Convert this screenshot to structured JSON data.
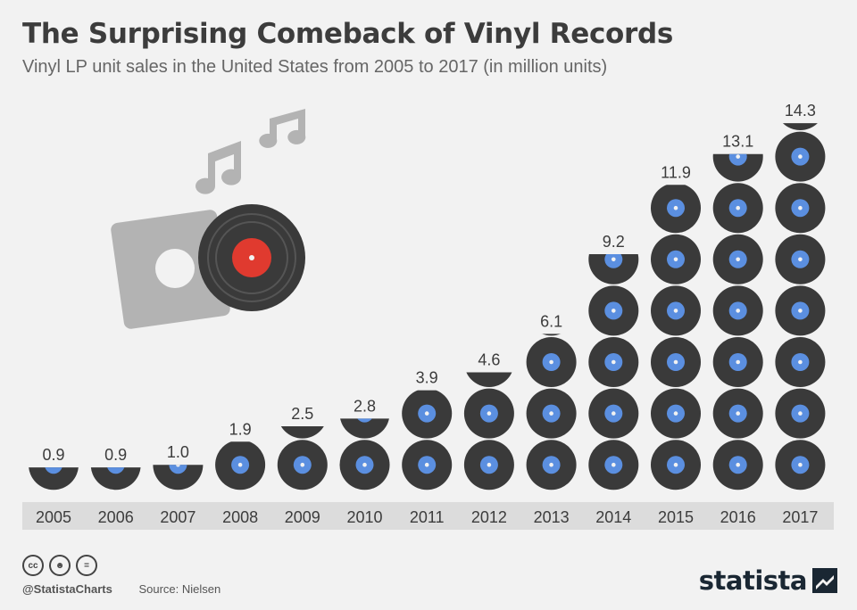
{
  "title": "The Surprising Comeback of Vinyl Records",
  "subtitle": "Vinyl LP unit sales in the United States from 2005 to 2017 (in million units)",
  "chart_data": {
    "type": "bar",
    "categories": [
      "2005",
      "2006",
      "2007",
      "2008",
      "2009",
      "2010",
      "2011",
      "2012",
      "2013",
      "2014",
      "2015",
      "2016",
      "2017"
    ],
    "values": [
      0.9,
      0.9,
      1.0,
      1.9,
      2.5,
      2.8,
      3.9,
      4.6,
      6.1,
      9.2,
      11.9,
      13.1,
      14.3
    ],
    "value_labels": [
      "0.9",
      "0.9",
      "1.0",
      "1.9",
      "2.5",
      "2.8",
      "3.9",
      "4.6",
      "6.1",
      "9.2",
      "11.9",
      "13.1",
      "14.3"
    ],
    "units_per_record": 2,
    "colors": {
      "record": "#3a3a3a",
      "label": "#5b8fe0",
      "axis_band": "#dcdcdc",
      "illustration_sleeve": "#b3b3b3",
      "illustration_label": "#e03a2f",
      "notes": "#b3b3b3"
    }
  },
  "footer": {
    "handle": "@StatistaCharts",
    "source": "Source: Nielsen",
    "brand": "statista",
    "cc_icons": [
      "cc-icon",
      "by-icon",
      "nd-icon"
    ]
  }
}
